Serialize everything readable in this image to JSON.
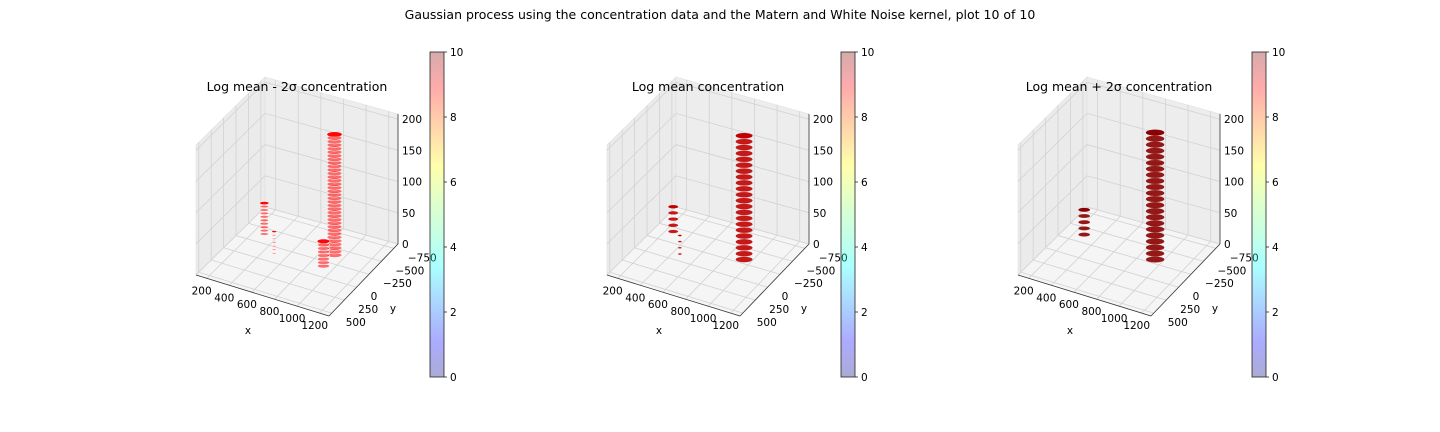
{
  "figure": {
    "suptitle": "Gaussian process using the  concentration data and the Matern and White Noise kernel, plot 10 of 10"
  },
  "chart_data": [
    {
      "type": "scatter3d",
      "title": "Log mean - 2σ concentration",
      "xlabel": "x",
      "ylabel": "y",
      "zlabel": "",
      "xticks": [
        "200",
        "400",
        "600",
        "800",
        "1000",
        "1200"
      ],
      "yticks": [
        "−750",
        "−500",
        "−250",
        "0",
        "250",
        "500"
      ],
      "zticks": [
        "0",
        "50",
        "100",
        "150",
        "200"
      ],
      "xlim": [
        100,
        1250
      ],
      "ylim": [
        -850,
        650
      ],
      "zlim": [
        0,
        210
      ],
      "color": "#ff0000",
      "style": "dotted",
      "clusters": [
        {
          "x": 900,
          "y": 150,
          "z": [
            5,
            200
          ],
          "rx": 85,
          "ry": 80
        },
        {
          "x": 400,
          "y": -120,
          "z": [
            30,
            80
          ],
          "rx": 50,
          "ry": 45
        },
        {
          "x": 470,
          "y": -80,
          "z": [
            0,
            35
          ],
          "rx": 25,
          "ry": 25
        },
        {
          "x": 880,
          "y": -40,
          "z": [
            0,
            40
          ],
          "rx": 70,
          "ry": 70
        }
      ],
      "colorbar": {
        "ticks": [
          "0",
          "2",
          "4",
          "6",
          "8",
          "10"
        ],
        "range": [
          0,
          10
        ],
        "cmap": "jet"
      }
    },
    {
      "type": "scatter3d",
      "title": "Log mean concentration",
      "xlabel": "x",
      "ylabel": "y",
      "zlabel": "",
      "xticks": [
        "200",
        "400",
        "600",
        "800",
        "1000",
        "1200"
      ],
      "yticks": [
        "−750",
        "−500",
        "−250",
        "0",
        "250",
        "500"
      ],
      "zticks": [
        "0",
        "50",
        "100",
        "150",
        "200"
      ],
      "xlim": [
        100,
        1250
      ],
      "ylim": [
        -850,
        650
      ],
      "zlim": [
        0,
        210
      ],
      "color": "#c00000",
      "style": "solid",
      "clusters": [
        {
          "x": 900,
          "y": 120,
          "z": [
            0,
            200
          ],
          "rx": 95,
          "ry": 90
        },
        {
          "x": 390,
          "y": -140,
          "z": [
            35,
            75
          ],
          "rx": 55,
          "ry": 45
        },
        {
          "x": 440,
          "y": -120,
          "z": [
            0,
            30
          ],
          "rx": 20,
          "ry": 20
        }
      ],
      "colorbar": {
        "ticks": [
          "0",
          "2",
          "4",
          "6",
          "8",
          "10"
        ],
        "range": [
          0,
          10
        ],
        "cmap": "jet"
      }
    },
    {
      "type": "scatter3d",
      "title": "Log mean + 2σ concentration",
      "xlabel": "x",
      "ylabel": "y",
      "zlabel": "",
      "xticks": [
        "200",
        "400",
        "600",
        "800",
        "1000",
        "1200"
      ],
      "yticks": [
        "−750",
        "−500",
        "−250",
        "0",
        "250",
        "500"
      ],
      "zticks": [
        "0",
        "50",
        "100",
        "150",
        "200"
      ],
      "xlim": [
        100,
        1250
      ],
      "ylim": [
        -850,
        650
      ],
      "zlim": [
        0,
        210
      ],
      "color": "#8b0000",
      "style": "solid",
      "clusters": [
        {
          "x": 900,
          "y": 120,
          "z": [
            0,
            205
          ],
          "rx": 105,
          "ry": 95
        },
        {
          "x": 390,
          "y": -140,
          "z": [
            30,
            70
          ],
          "rx": 65,
          "ry": 50
        }
      ],
      "colorbar": {
        "ticks": [
          "0",
          "2",
          "4",
          "6",
          "8",
          "10"
        ],
        "range": [
          0,
          10
        ],
        "cmap": "jet"
      }
    }
  ]
}
